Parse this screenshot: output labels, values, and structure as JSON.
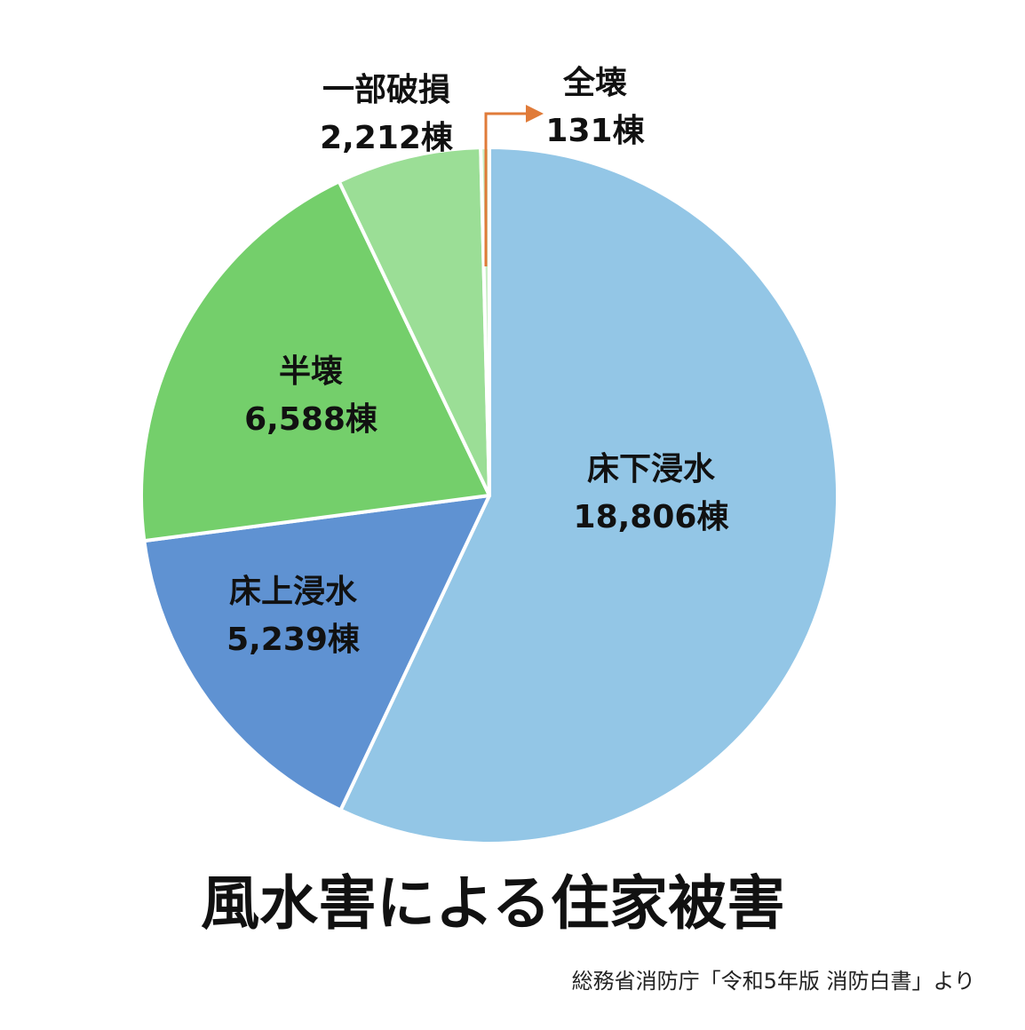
{
  "chart_data": {
    "type": "pie",
    "title": "風水害による住家被害",
    "source": "総務省消防庁「令和5年版 消防白書」より",
    "categories": [
      "床下浸水",
      "床上浸水",
      "半壊",
      "一部破損",
      "全壊"
    ],
    "values": [
      18806,
      5239,
      6588,
      2212,
      131
    ],
    "value_labels": [
      "18,806棟",
      "5,239棟",
      "6,588棟",
      "2,212棟",
      "131棟"
    ],
    "colors": [
      "#93c6e6",
      "#5f92d2",
      "#74cf6b",
      "#9bde96",
      "#c9eec5"
    ]
  }
}
